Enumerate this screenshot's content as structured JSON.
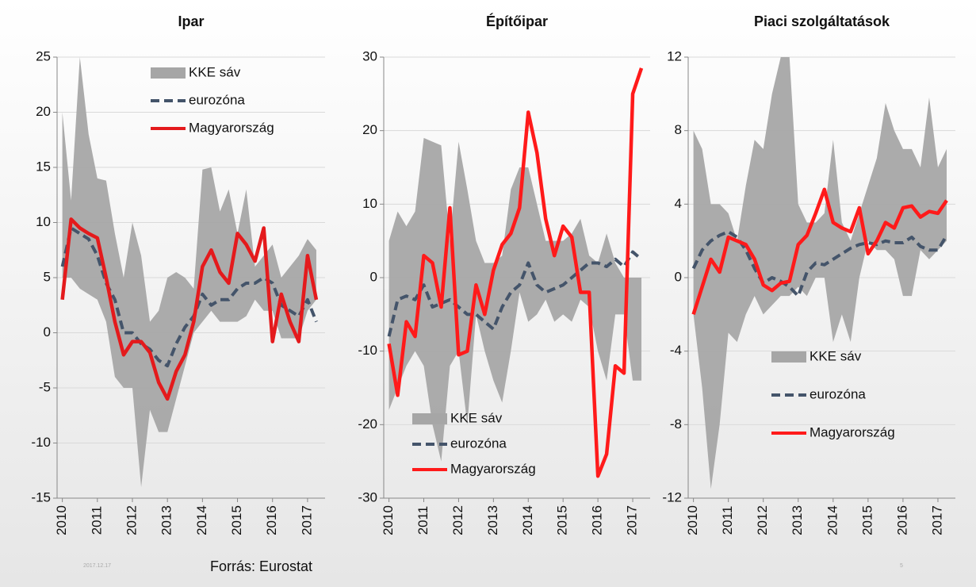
{
  "chart_data": [
    {
      "type": "line",
      "title": "Ipar",
      "legend": "upper center",
      "x": [
        2010,
        2010.25,
        2010.5,
        2010.75,
        2011,
        2011.25,
        2011.5,
        2011.75,
        2012,
        2012.25,
        2012.5,
        2012.75,
        2013,
        2013.25,
        2013.5,
        2013.75,
        2014,
        2014.25,
        2014.5,
        2014.75,
        2015,
        2015.25,
        2015.5,
        2015.75,
        2016,
        2016.25,
        2016.5,
        2016.75,
        2017,
        2017.25
      ],
      "xlim": [
        2009.85,
        2017.5
      ],
      "xticks": [
        2010,
        2011,
        2012,
        2013,
        2014,
        2015,
        2016,
        2017
      ],
      "ylim": [
        -15,
        25
      ],
      "yticks": [
        -15,
        -10,
        -5,
        0,
        5,
        10,
        15,
        20,
        25
      ],
      "grid": true,
      "series": [
        {
          "name": "KKE sáv",
          "type": "band",
          "color": "#a6a6a6",
          "high": [
            20,
            12,
            25,
            18,
            14,
            13.8,
            9,
            5,
            10,
            7,
            1,
            2,
            5,
            5.5,
            5,
            4,
            14.8,
            15,
            11,
            13,
            9,
            13,
            6,
            7,
            8,
            5,
            6,
            7,
            8.5,
            7.5
          ],
          "low": [
            5,
            5,
            4,
            3.5,
            3,
            1,
            -4,
            -5,
            -5,
            -14,
            -7,
            -9,
            -9,
            -6,
            -3,
            0,
            1,
            2,
            1,
            1,
            1,
            1.5,
            3,
            2,
            2,
            -0.5,
            -0.5,
            -0.5,
            2,
            3
          ]
        },
        {
          "name": "eurozóna",
          "type": "line",
          "style": "dashed",
          "color": "#44546a",
          "values": [
            6,
            9.5,
            9,
            8.5,
            7,
            4.5,
            3,
            0,
            0,
            -1,
            -1.5,
            -2.5,
            -3,
            -1,
            0.5,
            1.5,
            3.5,
            2.5,
            3,
            3,
            4,
            4.5,
            4.5,
            5,
            4.5,
            2.5,
            2,
            1.5,
            3,
            1
          ]
        },
        {
          "name": "Magyarország",
          "type": "line",
          "style": "solid",
          "color": "#e41a1c",
          "values": [
            3,
            10.3,
            9.5,
            9,
            8.6,
            5,
            1,
            -2,
            -0.8,
            -0.8,
            -1.8,
            -4.5,
            -6,
            -3.5,
            -2,
            1,
            6,
            7.5,
            5.5,
            4.5,
            9,
            8,
            6.5,
            9.5,
            -0.8,
            3.5,
            1,
            -0.8,
            7,
            3
          ]
        }
      ]
    },
    {
      "type": "line",
      "title": "Építőipar",
      "legend": "lower center",
      "x": [
        2010,
        2010.25,
        2010.5,
        2010.75,
        2011,
        2011.25,
        2011.5,
        2011.75,
        2012,
        2012.25,
        2012.5,
        2012.75,
        2013,
        2013.25,
        2013.5,
        2013.75,
        2014,
        2014.25,
        2014.5,
        2014.75,
        2015,
        2015.25,
        2015.5,
        2015.75,
        2016,
        2016.25,
        2016.5,
        2016.75,
        2017,
        2017.25
      ],
      "xlim": [
        2009.85,
        2017.5
      ],
      "xticks": [
        2010,
        2011,
        2012,
        2013,
        2014,
        2015,
        2016,
        2017
      ],
      "ylim": [
        -30,
        30
      ],
      "yticks": [
        -30,
        -20,
        -10,
        0,
        10,
        20,
        30
      ],
      "grid": true,
      "series": [
        {
          "name": "KKE sáv",
          "type": "band",
          "color": "#a6a6a6",
          "high": [
            5,
            9,
            7,
            9,
            19,
            18.5,
            18,
            5,
            18.5,
            12,
            5,
            2,
            2,
            3,
            12,
            15,
            15,
            10,
            5,
            5,
            5,
            6,
            8,
            3,
            2,
            6,
            2,
            0,
            0,
            0
          ],
          "low": [
            -18,
            -15,
            -12,
            -10,
            -12,
            -20,
            -25,
            -12,
            -10,
            -20,
            -5,
            -10,
            -14,
            -17,
            -10,
            -2,
            -6,
            -5,
            -3,
            -6,
            -5,
            -6,
            -3,
            -4,
            -10,
            -14,
            -5,
            -5,
            -14,
            -14
          ]
        },
        {
          "name": "eurozóna",
          "type": "line",
          "style": "dashed",
          "color": "#44546a",
          "values": [
            -8,
            -3,
            -2.5,
            -3,
            -1,
            -4,
            -3.5,
            -3,
            -4,
            -5,
            -5,
            -6,
            -7,
            -4,
            -2,
            -1,
            2,
            -1,
            -2,
            -1.5,
            -1,
            0,
            1,
            2,
            2,
            1.5,
            2.5,
            1.5,
            3.5,
            2.5
          ]
        },
        {
          "name": "Magyarország",
          "type": "line",
          "style": "solid",
          "color": "#ff1a1a",
          "values": [
            -9,
            -16,
            -6,
            -8,
            3,
            2,
            -4,
            9.5,
            -10.5,
            -10,
            -1,
            -5,
            1,
            4.5,
            6,
            9.5,
            22.5,
            17,
            8,
            3,
            7,
            5.5,
            -2,
            -2,
            -27,
            -24,
            -12,
            -13,
            25,
            28.5
          ]
        }
      ]
    },
    {
      "type": "line",
      "title": "Piaci szolgáltatások",
      "legend": "lower right",
      "x": [
        2010,
        2010.25,
        2010.5,
        2010.75,
        2011,
        2011.25,
        2011.5,
        2011.75,
        2012,
        2012.25,
        2012.5,
        2012.75,
        2013,
        2013.25,
        2013.5,
        2013.75,
        2014,
        2014.25,
        2014.5,
        2014.75,
        2015,
        2015.25,
        2015.5,
        2015.75,
        2016,
        2016.25,
        2016.5,
        2016.75,
        2017,
        2017.25
      ],
      "xlim": [
        2009.85,
        2017.5
      ],
      "xticks": [
        2010,
        2011,
        2012,
        2013,
        2014,
        2015,
        2016,
        2017
      ],
      "ylim": [
        -12,
        12
      ],
      "yticks": [
        -12,
        -8,
        -4,
        0,
        4,
        8,
        12
      ],
      "grid": true,
      "series": [
        {
          "name": "KKE sáv",
          "type": "band",
          "color": "#a6a6a6",
          "high": [
            8,
            7,
            4,
            4,
            3.5,
            2,
            5,
            7.5,
            7,
            10,
            12,
            12,
            4,
            3,
            3,
            3.5,
            7.5,
            3,
            2,
            3.5,
            5,
            6.5,
            9.5,
            8,
            7,
            7,
            6,
            9.8,
            6,
            7
          ],
          "low": [
            -2,
            -6,
            -11.5,
            -8,
            -3,
            -3.5,
            -2,
            -1,
            -2,
            -1.5,
            -1,
            -1,
            -0.5,
            -1,
            0,
            0,
            -3.5,
            -2,
            -3.5,
            0,
            2,
            1.5,
            1.5,
            1,
            -1,
            -1,
            1.5,
            1,
            1.5,
            2
          ]
        },
        {
          "name": "eurozóna",
          "type": "line",
          "style": "dashed",
          "color": "#44546a",
          "values": [
            0.5,
            1.5,
            2,
            2.3,
            2.5,
            2.2,
            1.5,
            0.5,
            -0.3,
            0,
            -0.2,
            -0.5,
            -1,
            0.3,
            0.8,
            0.7,
            1,
            1.3,
            1.6,
            1.8,
            1.9,
            1.8,
            2,
            1.9,
            1.9,
            2.2,
            1.7,
            1.5,
            1.5,
            2.3
          ]
        },
        {
          "name": "Magyarország",
          "type": "line",
          "style": "solid",
          "color": "#ff1a1a",
          "values": [
            -2,
            -0.5,
            1,
            0.3,
            2.2,
            2,
            1.8,
            1,
            -0.4,
            -0.7,
            -0.3,
            -0.2,
            1.8,
            2.3,
            3.5,
            4.8,
            3,
            2.7,
            2.5,
            3.8,
            1.3,
            2,
            3,
            2.7,
            3.8,
            3.9,
            3.3,
            3.6,
            3.5,
            4.2
          ]
        }
      ]
    }
  ],
  "footer": {
    "source": "Forrás: Eurostat",
    "date": "2017.12.17",
    "page": "5"
  }
}
